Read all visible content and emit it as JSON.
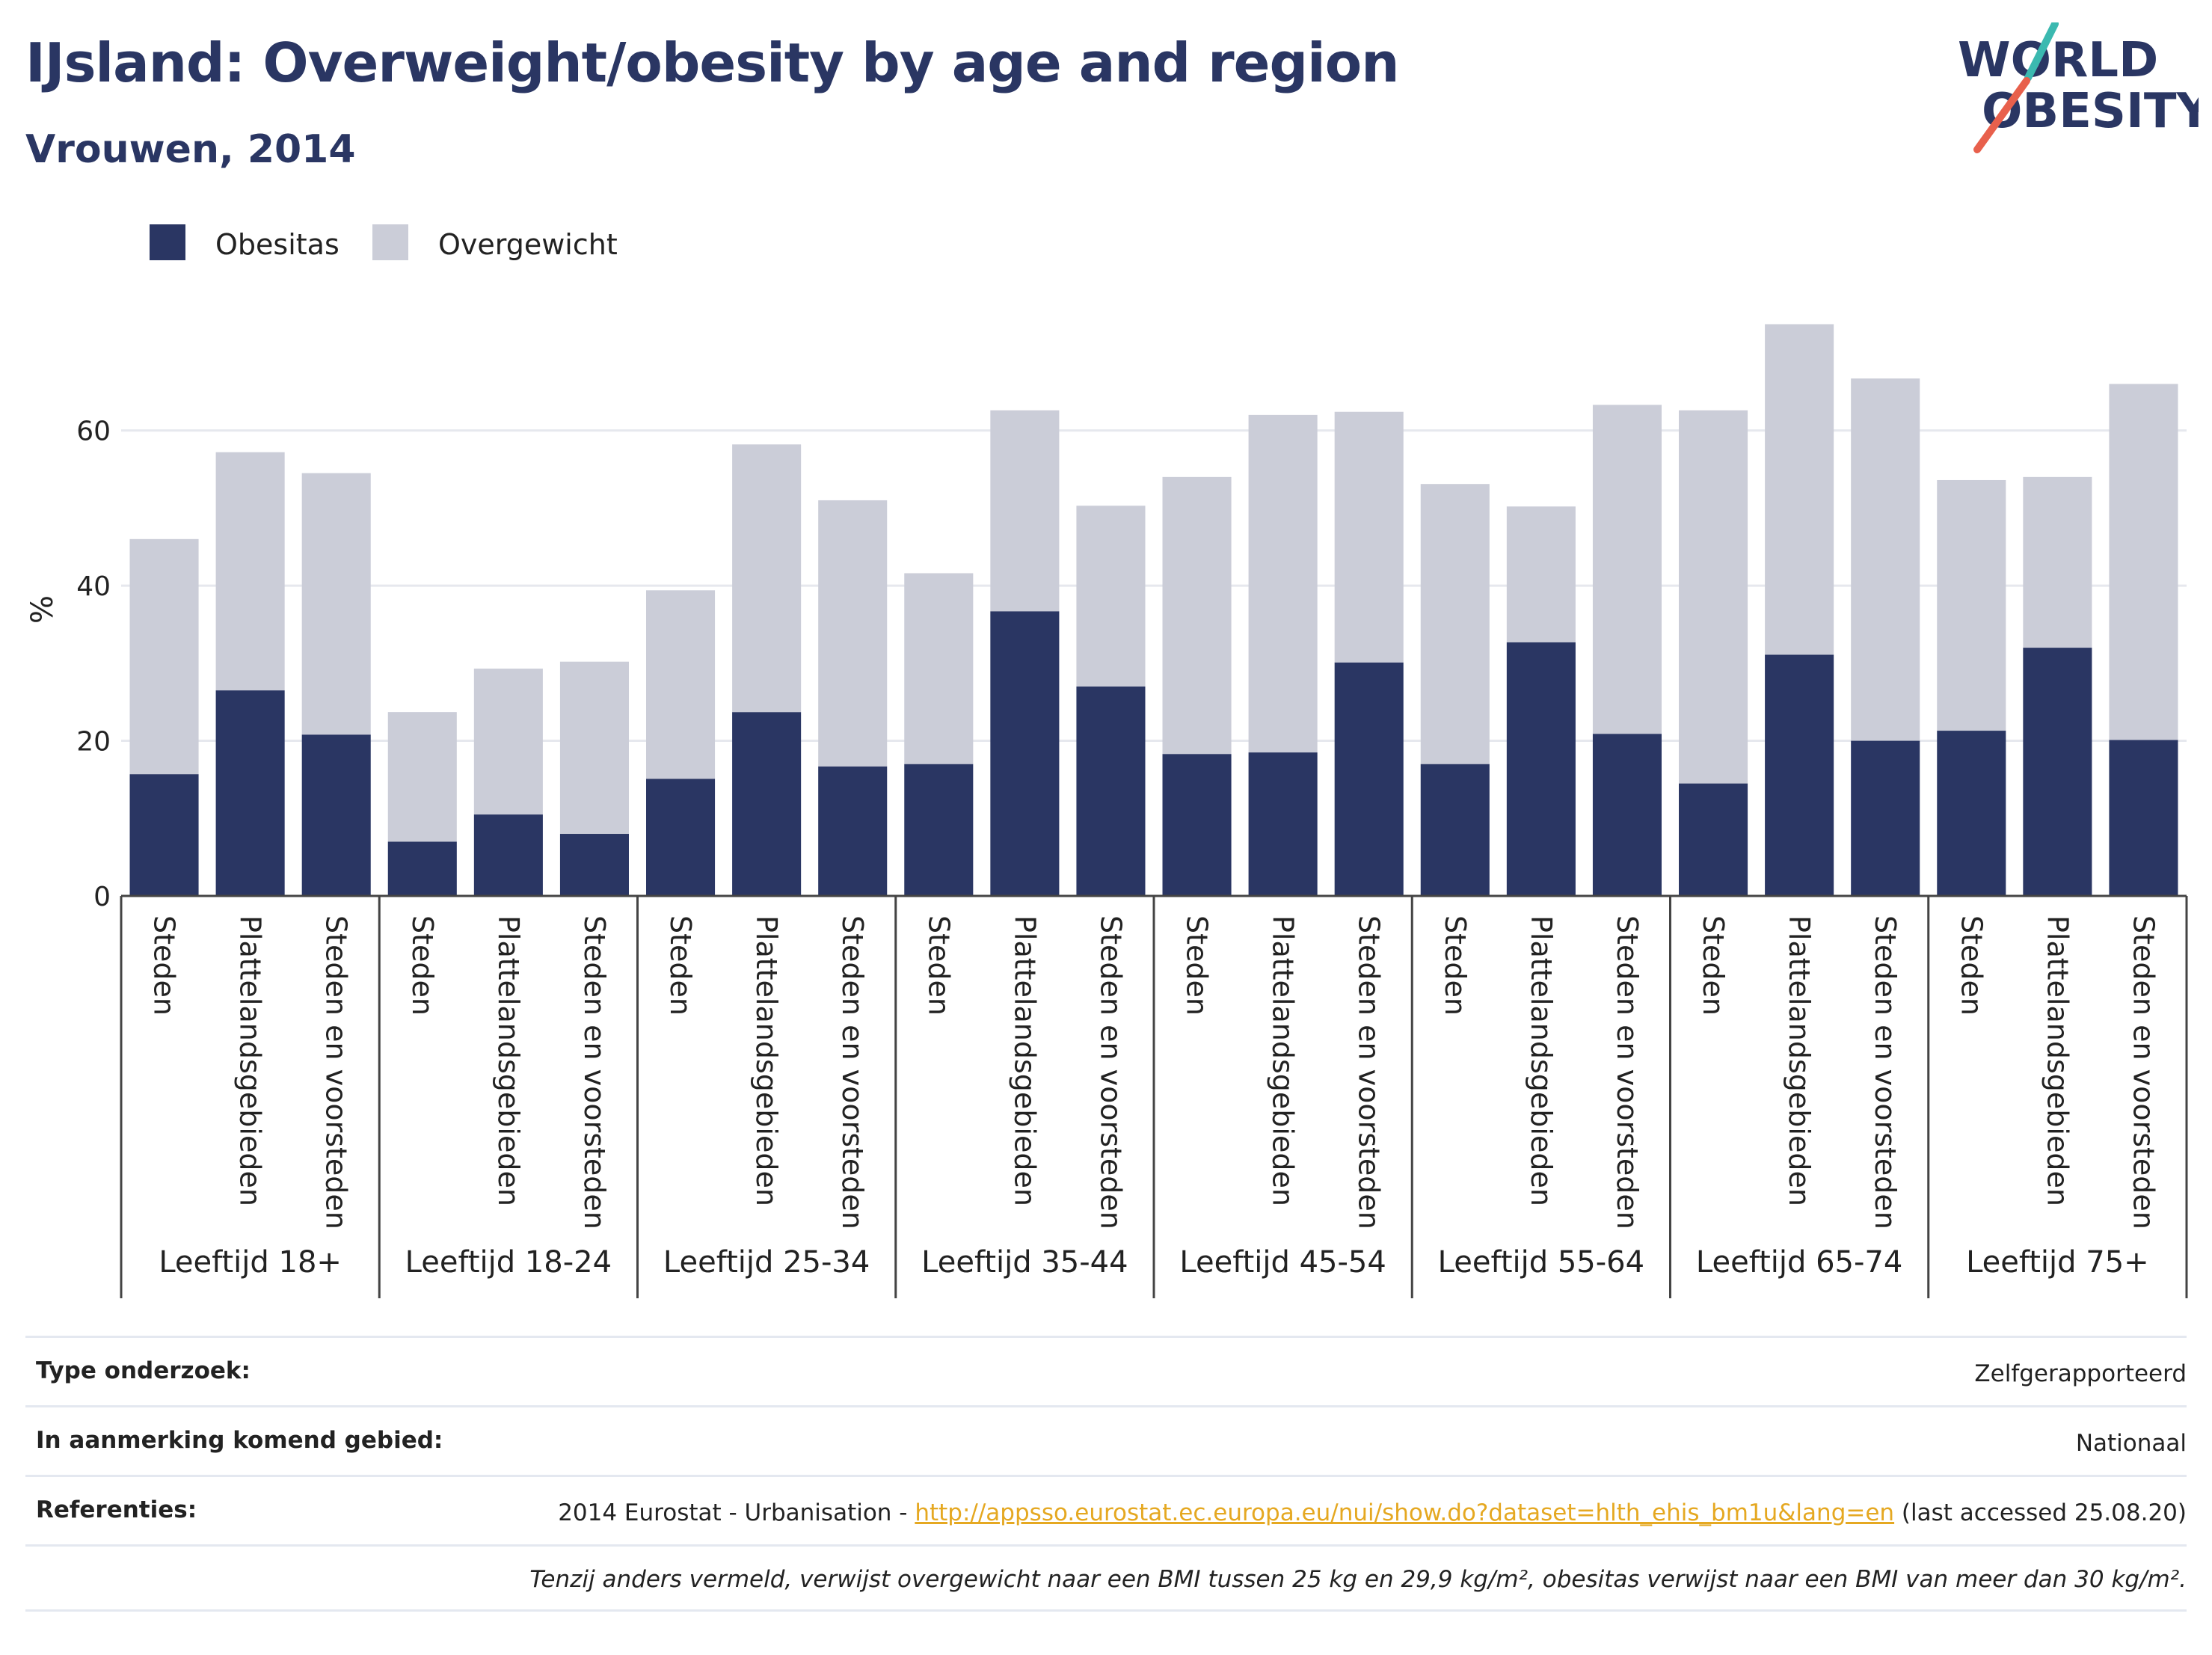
{
  "header": {
    "title": "IJsland: Overweight/obesity by age and region",
    "subtitle": "Vrouwen, 2014",
    "logo_text_line1": "WORLD",
    "logo_text_line2": "OBESITY"
  },
  "colors": {
    "obesitas": "#2a3663",
    "overgewicht": "#cbcdd8",
    "title": "#2a3663",
    "link": "#e5a821"
  },
  "chart_data": {
    "type": "bar",
    "stacked": true,
    "ylabel": "%",
    "ylim": [
      0,
      75
    ],
    "yticks": [
      0,
      20,
      40,
      60
    ],
    "grid": true,
    "legend": {
      "position": "top-left",
      "entries": [
        "Obesitas",
        "Overgewicht"
      ]
    },
    "groups": [
      {
        "label": "Leeftijd 18+",
        "categories": [
          "Steden",
          "Plattelandsgebieden",
          "Steden en voorsteden"
        ]
      },
      {
        "label": "Leeftijd 18-24",
        "categories": [
          "Steden",
          "Plattelandsgebieden",
          "Steden en voorsteden"
        ]
      },
      {
        "label": "Leeftijd 25-34",
        "categories": [
          "Steden",
          "Plattelandsgebieden",
          "Steden en voorsteden"
        ]
      },
      {
        "label": "Leeftijd 35-44",
        "categories": [
          "Steden",
          "Plattelandsgebieden",
          "Steden en voorsteden"
        ]
      },
      {
        "label": "Leeftijd 45-54",
        "categories": [
          "Steden",
          "Plattelandsgebieden",
          "Steden en voorsteden"
        ]
      },
      {
        "label": "Leeftijd 55-64",
        "categories": [
          "Steden",
          "Plattelandsgebieden",
          "Steden en voorsteden"
        ]
      },
      {
        "label": "Leeftijd 65-74",
        "categories": [
          "Steden",
          "Plattelandsgebieden",
          "Steden en voorsteden"
        ]
      },
      {
        "label": "Leeftijd 75+",
        "categories": [
          "Steden",
          "Plattelandsgebieden",
          "Steden en voorsteden"
        ]
      }
    ],
    "series": [
      {
        "name": "Obesitas",
        "values": [
          15.7,
          26.5,
          20.8,
          7.0,
          10.5,
          8.0,
          15.1,
          23.7,
          16.7,
          17.0,
          36.7,
          27.0,
          18.3,
          18.5,
          30.1,
          17.0,
          32.7,
          20.9,
          14.5,
          31.1,
          20.0,
          21.3,
          32.0,
          20.1
        ]
      },
      {
        "name": "Overgewicht",
        "values": [
          30.3,
          30.7,
          33.7,
          16.7,
          18.8,
          22.2,
          24.3,
          34.5,
          34.3,
          24.6,
          25.9,
          23.3,
          35.7,
          43.5,
          32.3,
          36.1,
          17.5,
          42.4,
          48.1,
          42.6,
          46.7,
          32.3,
          22.0,
          45.9
        ]
      }
    ]
  },
  "info": {
    "rows": [
      {
        "label": "Type onderzoek:",
        "value": "Zelfgerapporteerd"
      },
      {
        "label": "In aanmerking komend gebied:",
        "value": "Nationaal"
      },
      {
        "label": "Referenties:",
        "value_prefix": "2014 Eurostat - Urbanisation - ",
        "link": "http://appsso.eurostat.ec.europa.eu/nui/show.do?dataset=hlth_ehis_bm1u&lang=en",
        "value_suffix": " (last accessed 25.08.20)"
      }
    ],
    "note": "Tenzij anders vermeld, verwijst overgewicht naar een BMI tussen 25 kg en 29,9 kg/m², obesitas verwijst naar een BMI van meer dan 30 kg/m²."
  }
}
